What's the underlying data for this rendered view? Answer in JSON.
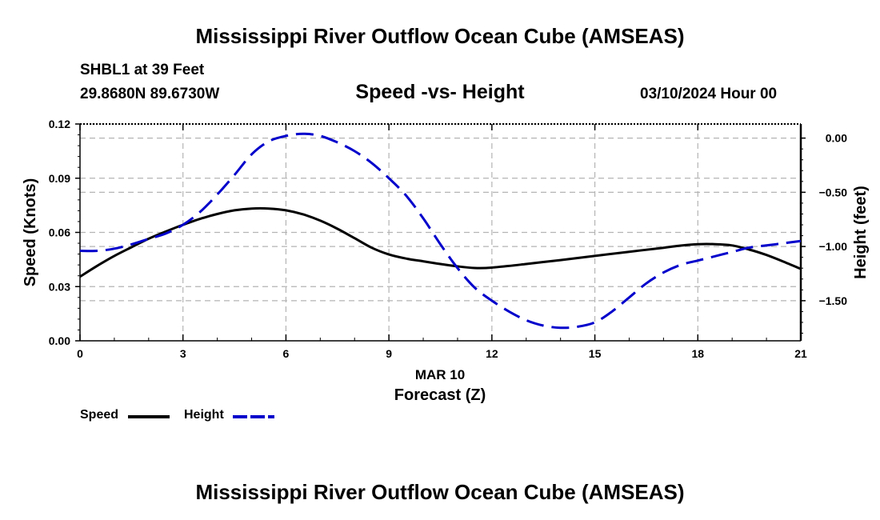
{
  "header": {
    "title": "Mississippi River Outflow Ocean Cube (AMSEAS)",
    "title_repeat": "Mississippi River Outflow Ocean Cube (AMSEAS)",
    "station": "SHBL1 at 39 Feet",
    "coordinates": "29.8680N  89.6730W",
    "chart_title": "Speed -vs- Height",
    "datetime": "03/10/2024 Hour 00"
  },
  "colors": {
    "speed": "#000000",
    "height": "#0000cc",
    "grid": "#b4b4b4"
  },
  "legend": {
    "speed_label": "Speed",
    "height_label": "Height"
  },
  "chart_data": {
    "type": "line",
    "title": "Speed -vs- Height",
    "xlabel": "Forecast (Z)",
    "xlabel_date": "MAR 10",
    "ylabel_left": "Speed (Knots)",
    "ylabel_right": "Height (feet)",
    "xlim": [
      0,
      21
    ],
    "ylim_left": [
      0,
      0.12
    ],
    "ylim_right": [
      -1.87,
      0.13
    ],
    "x_ticks": [
      0,
      3,
      6,
      9,
      12,
      15,
      18,
      21
    ],
    "x_tick_labels": [
      "0",
      "3",
      "6",
      "9",
      "12",
      "15",
      "18",
      "21"
    ],
    "y_left_ticks": [
      0,
      0.03,
      0.06,
      0.09,
      0.12
    ],
    "y_left_tick_labels": [
      "0.00",
      "0.03",
      "0.06",
      "0.09",
      "0.12"
    ],
    "y_right_ticks": [
      0,
      -0.5,
      -1.0,
      -1.5
    ],
    "y_right_tick_labels": [
      "0.00",
      "−0.50",
      "−1.00",
      "−1.50"
    ],
    "series": [
      {
        "name": "Speed",
        "axis": "left",
        "style": "solid",
        "x": [
          0,
          0.5,
          1,
          1.5,
          2,
          2.5,
          3,
          3.5,
          4,
          4.5,
          5,
          5.5,
          6,
          6.5,
          7,
          7.5,
          8,
          8.5,
          9,
          9.5,
          10,
          10.5,
          11,
          11.5,
          12,
          13,
          14,
          15,
          16,
          17,
          17.5,
          18,
          18.5,
          19,
          19.5,
          20,
          20.5,
          21
        ],
        "values": [
          0.0355,
          0.0415,
          0.047,
          0.0518,
          0.0565,
          0.0605,
          0.0642,
          0.0675,
          0.0702,
          0.0722,
          0.0732,
          0.0732,
          0.0722,
          0.07,
          0.0665,
          0.062,
          0.0568,
          0.0515,
          0.0478,
          0.0455,
          0.044,
          0.0425,
          0.0412,
          0.0403,
          0.0405,
          0.0425,
          0.0447,
          0.047,
          0.0493,
          0.0515,
          0.0527,
          0.0535,
          0.0535,
          0.0528,
          0.0505,
          0.0475,
          0.0438,
          0.0398
        ]
      },
      {
        "name": "Height",
        "axis": "right",
        "style": "dashed",
        "x": [
          0,
          0.5,
          1,
          1.5,
          2,
          2.5,
          3,
          3.5,
          4,
          4.5,
          5,
          5.5,
          6,
          6.5,
          7,
          7.5,
          8,
          8.5,
          9,
          9.5,
          10,
          10.5,
          11,
          11.5,
          12,
          12.5,
          13,
          13.5,
          14,
          14.5,
          15,
          15.5,
          16,
          16.5,
          17,
          17.5,
          18,
          18.5,
          19,
          19.5,
          20,
          20.5,
          21
        ],
        "values": [
          -1.04,
          -1.04,
          -1.02,
          -0.98,
          -0.93,
          -0.88,
          -0.8,
          -0.68,
          -0.52,
          -0.34,
          -0.15,
          -0.03,
          0.02,
          0.04,
          0.02,
          -0.04,
          -0.12,
          -0.23,
          -0.37,
          -0.53,
          -0.74,
          -0.98,
          -1.2,
          -1.38,
          -1.5,
          -1.6,
          -1.68,
          -1.73,
          -1.75,
          -1.74,
          -1.7,
          -1.6,
          -1.47,
          -1.34,
          -1.24,
          -1.17,
          -1.13,
          -1.09,
          -1.05,
          -1.01,
          -0.99,
          -0.97,
          -0.95
        ]
      }
    ]
  }
}
